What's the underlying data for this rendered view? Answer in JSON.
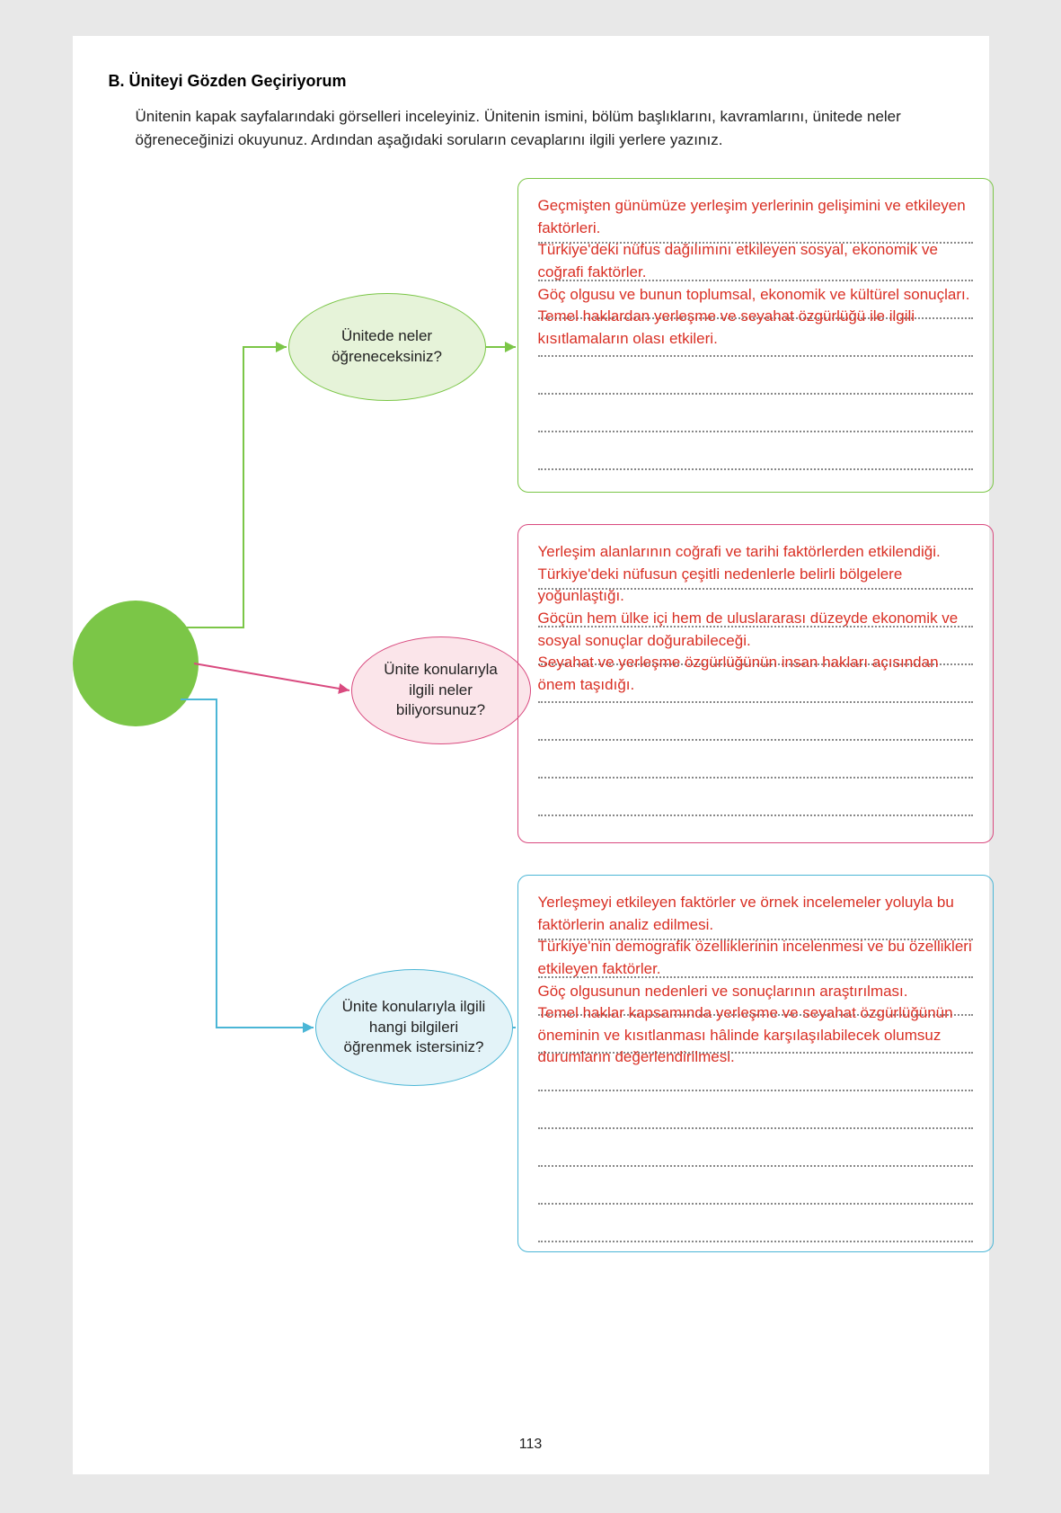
{
  "header": {
    "section_label": "B. Üniteyi Gözden Geçiriyorum",
    "intro_text": "Ünitenin kapak sayfalarındaki görselleri inceleyiniz. Ünitenin ismini, bölüm başlıklarını, kavramlarını, ünitede neler öğreneceğinizi okuyunuz. Ardından aşağıdaki soruların cevaplarını ilgili yerlere yazınız."
  },
  "page_number": "113",
  "colors": {
    "page_bg": "#ffffff",
    "body_bg": "#e8e8e8",
    "hub_fill": "#7bc647",
    "green_border": "#7bc647",
    "green_fill": "#e6f3d9",
    "pink_border": "#d94a7f",
    "pink_fill": "#fbe5ea",
    "blue_border": "#4bb6d6",
    "blue_fill": "#e3f3f8",
    "answer_text": "#d93025",
    "dotted_line": "#888888"
  },
  "diagram": {
    "type": "mindmap",
    "nodes": {
      "green": {
        "question": "Ünitede neler öğreneceksiniz?",
        "answer": "Geçmişten günümüze yerleşim yerlerinin gelişimini ve etkileyen faktörleri.\nTürkiye'deki nüfus dağılımını etkileyen sosyal, ekonomik ve coğrafi faktörler.\nGöç olgusu ve bunun toplumsal, ekonomik ve kültürel sonuçları.\nTemel haklardan yerleşme ve seyahat özgürlüğü ile ilgili kısıtlamaların olası etkileri.",
        "blank_lines": 3
      },
      "pink": {
        "question": "Ünite konularıyla ilgili neler biliyorsunuz?",
        "answer": "Yerleşim alanlarının coğrafi ve tarihi faktörlerden etkilendiği.\nTürkiye'deki nüfusun çeşitli nedenlerle belirli bölgelere yoğunlaştığı.\nGöçün hem ülke içi hem de uluslararası düzeyde ekonomik ve sosyal sonuçlar doğurabileceği.\nSeyahat ve yerleşme özgürlüğünün insan hakları açısından önem taşıdığı.",
        "blank_lines": 3
      },
      "blue": {
        "question": "Ünite konularıyla ilgili hangi bilgileri öğrenmek istersiniz?",
        "answer": "Yerleşmeyi etkileyen faktörler ve örnek incelemeler yoluyla bu faktörlerin analiz edilmesi.\nTürkiye'nin demografik özelliklerinin incelenmesi ve bu özellikleri etkileyen faktörler.\nGöç olgusunun nedenleri ve sonuçlarının araştırılması.\nTemel haklar kapsamında yerleşme ve seyahat özgürlüğünün öneminin ve kısıtlanması hâlinde karşılaşılabilecek olumsuz durumların değerlendirilmesi.",
        "blank_lines": 2
      }
    }
  }
}
